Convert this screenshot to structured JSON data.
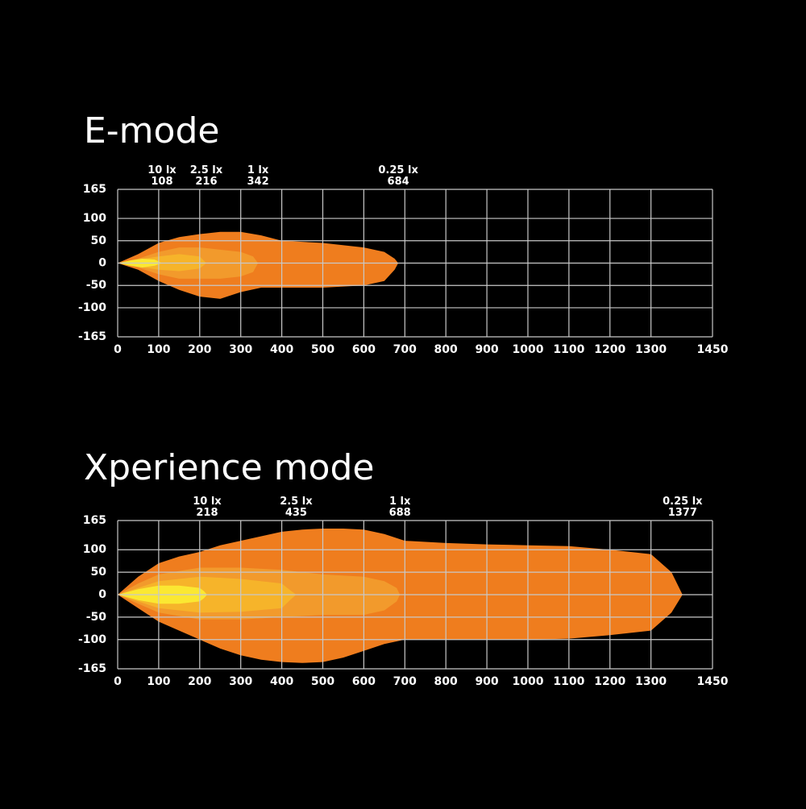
{
  "chart_data": [
    {
      "type": "beam",
      "title": "E-mode",
      "xlim": [
        0,
        1450
      ],
      "xticks": [
        0,
        100,
        200,
        300,
        400,
        500,
        600,
        700,
        800,
        900,
        1000,
        1100,
        1200,
        1300,
        1450
      ],
      "ylim": [
        -165,
        165
      ],
      "yticks": [
        165,
        100,
        50,
        0,
        -50,
        -100,
        -165
      ],
      "grid": true,
      "series": [
        {
          "name": "10 lx",
          "reach": 108,
          "color": "#fbe832",
          "x": [
            0,
            30,
            60,
            90
          ],
          "upper": [
            0,
            6,
            10,
            8
          ],
          "lower": [
            0,
            -6,
            -10,
            -6
          ]
        },
        {
          "name": "2.5 lx",
          "reach": 216,
          "color": "#f6b42a",
          "x": [
            0,
            50,
            100,
            150,
            200
          ],
          "upper": [
            0,
            8,
            15,
            20,
            15
          ],
          "lower": [
            0,
            -8,
            -15,
            -18,
            -12
          ]
        },
        {
          "name": "1 lx",
          "reach": 342,
          "color": "#f29a2c",
          "x": [
            0,
            50,
            100,
            150,
            200,
            250,
            300,
            330
          ],
          "upper": [
            0,
            10,
            25,
            35,
            35,
            30,
            25,
            15
          ],
          "lower": [
            0,
            -10,
            -25,
            -35,
            -35,
            -35,
            -30,
            -20
          ]
        },
        {
          "name": "0.25 lx",
          "reach": 684,
          "color": "#ef7d1e",
          "x": [
            0,
            50,
            100,
            150,
            200,
            250,
            300,
            350,
            400,
            500,
            600,
            650,
            675
          ],
          "upper": [
            0,
            20,
            45,
            58,
            65,
            70,
            70,
            62,
            50,
            45,
            35,
            25,
            10
          ],
          "lower": [
            0,
            -15,
            -40,
            -60,
            -75,
            -80,
            -65,
            -55,
            -55,
            -55,
            -50,
            -40,
            -15
          ]
        }
      ]
    },
    {
      "type": "beam",
      "title": "Xperience mode",
      "xlim": [
        0,
        1450
      ],
      "xticks": [
        0,
        100,
        200,
        300,
        400,
        500,
        600,
        700,
        800,
        900,
        1000,
        1100,
        1200,
        1300,
        1450
      ],
      "ylim": [
        -165,
        165
      ],
      "yticks": [
        165,
        100,
        50,
        0,
        -50,
        -100,
        -165
      ],
      "grid": true,
      "series": [
        {
          "name": "10 lx",
          "reach": 218,
          "color": "#fbe832",
          "x": [
            0,
            50,
            100,
            150,
            200,
            210
          ],
          "upper": [
            0,
            12,
            20,
            20,
            15,
            8
          ],
          "lower": [
            0,
            -12,
            -20,
            -20,
            -15,
            -8
          ]
        },
        {
          "name": "2.5 lx",
          "reach": 435,
          "color": "#f6b42a",
          "x": [
            0,
            50,
            100,
            200,
            300,
            400,
            420
          ],
          "upper": [
            0,
            15,
            30,
            40,
            35,
            25,
            10
          ],
          "lower": [
            0,
            -15,
            -30,
            -40,
            -38,
            -30,
            -12
          ]
        },
        {
          "name": "1 lx",
          "reach": 688,
          "color": "#f29a2c",
          "x": [
            0,
            50,
            100,
            200,
            300,
            400,
            500,
            600,
            650,
            680
          ],
          "upper": [
            0,
            25,
            45,
            60,
            60,
            55,
            45,
            40,
            30,
            15
          ],
          "lower": [
            0,
            -20,
            -40,
            -55,
            -55,
            -50,
            -45,
            -45,
            -35,
            -15
          ]
        },
        {
          "name": "0.25 lx",
          "reach": 1377,
          "color": "#ef7d1e",
          "x": [
            0,
            50,
            100,
            150,
            200,
            250,
            300,
            350,
            400,
            450,
            500,
            550,
            600,
            650,
            700,
            800,
            900,
            1000,
            1100,
            1200,
            1300,
            1350
          ],
          "upper": [
            0,
            40,
            70,
            85,
            95,
            110,
            120,
            130,
            140,
            145,
            147,
            147,
            145,
            135,
            120,
            115,
            112,
            110,
            108,
            100,
            90,
            50
          ],
          "lower": [
            0,
            -30,
            -60,
            -80,
            -100,
            -120,
            -135,
            -145,
            -150,
            -152,
            -150,
            -140,
            -125,
            -110,
            -100,
            -100,
            -100,
            -100,
            -98,
            -90,
            -80,
            -40
          ]
        }
      ]
    }
  ]
}
